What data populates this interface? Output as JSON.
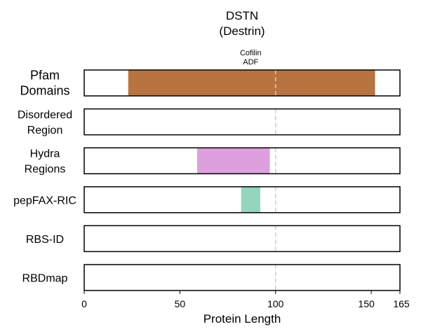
{
  "chart_data": {
    "type": "bar",
    "title_lines": [
      "DSTN",
      "(Destrin)"
    ],
    "xlabel": "Protein Length",
    "xlim": [
      0,
      165
    ],
    "xticks": [
      0,
      50,
      100,
      150,
      165
    ],
    "reference_line_x": 100,
    "annotation": {
      "lines": [
        "Cofilin",
        "ADF"
      ],
      "x": 87
    },
    "tracks": [
      {
        "label_lines": [
          "Pfam",
          "Domains"
        ],
        "segments": [
          {
            "start": 23,
            "end": 152,
            "color": "#b87440"
          }
        ]
      },
      {
        "label_lines": [
          "Disordered",
          "Region"
        ],
        "segments": []
      },
      {
        "label_lines": [
          "Hydra",
          "Regions"
        ],
        "segments": [
          {
            "start": 59,
            "end": 97,
            "color": "#dda0dd"
          }
        ]
      },
      {
        "label_lines": [
          "pepFAX-RIC"
        ],
        "segments": [
          {
            "start": 82,
            "end": 92,
            "color": "#93d5bd"
          }
        ]
      },
      {
        "label_lines": [
          "RBS-ID"
        ],
        "segments": []
      },
      {
        "label_lines": [
          "RBDmap"
        ],
        "segments": []
      }
    ]
  }
}
